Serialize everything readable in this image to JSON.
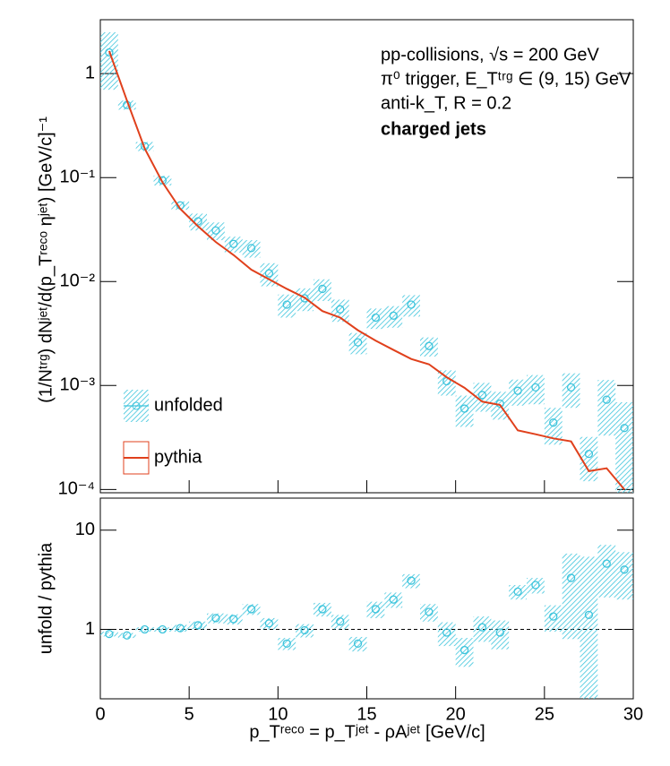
{
  "chart_data": [
    {
      "type": "log-hist",
      "ylabel": "(1/Nᵗʳᵍ) dNʲᵉᵗ/d(p_Tʳᵉᶜᵒ ηʲᵉᵗ) [GeV/c]⁻¹",
      "annotations": [
        "pp-collisions, √s = 200 GeV",
        "π⁰ trigger, E_Tᵗʳᵍ ∈ (9, 15) GeV",
        "anti-k_T, R = 0.2",
        "charged jets"
      ],
      "x": [
        0.5,
        1.5,
        2.5,
        3.5,
        4.5,
        5.5,
        6.5,
        7.5,
        8.5,
        9.5,
        10.5,
        11.5,
        12.5,
        13.5,
        14.5,
        15.5,
        16.5,
        17.5,
        18.5,
        19.5,
        20.5,
        21.5,
        22.5,
        23.5,
        24.5,
        25.5,
        26.5,
        27.5,
        28.5,
        29.5
      ],
      "xlim": [
        0,
        30
      ],
      "ylim": [
        9.3e-05,
        3.3
      ],
      "log_y": true,
      "yticks": [
        {
          "value": 0.0001,
          "label": "10⁻⁴"
        },
        {
          "value": 0.001,
          "label": "10⁻³"
        },
        {
          "value": 0.01,
          "label": "10⁻²"
        },
        {
          "value": 0.1,
          "label": "10⁻¹"
        },
        1
      ],
      "legend": "bottom-left",
      "series": [
        {
          "name": "unfolded",
          "color": "#3cc4dc",
          "style": "band",
          "values": [
            1.6,
            0.5,
            0.2,
            0.094,
            0.054,
            0.038,
            0.031,
            0.023,
            0.021,
            0.012,
            0.006,
            0.0069,
            0.0085,
            0.0054,
            0.0026,
            0.0045,
            0.0047,
            0.006,
            0.0024,
            0.0011,
            0.0006,
            0.00081,
            0.00067,
            0.00089,
            0.00096,
            0.00044,
            0.00096,
            0.00022,
            0.00073,
            0.00039
          ],
          "errors": [
            0.9,
            0.05,
            0.02,
            0.01,
            0.005,
            0.007,
            0.006,
            0.004,
            0.004,
            0.003,
            0.0015,
            0.0017,
            0.002,
            0.0013,
            0.0006,
            0.001,
            0.0011,
            0.0014,
            0.0005,
            0.0003,
            0.0002,
            0.00025,
            0.0002,
            0.00025,
            0.0003,
            0.00017,
            0.00035,
            0.0001,
            0.0004,
            0.0003
          ]
        },
        {
          "name": "pythia",
          "color": "#e0401c",
          "style": "line",
          "values": [
            1.65,
            0.55,
            0.19,
            0.09,
            0.05,
            0.034,
            0.024,
            0.018,
            0.013,
            0.0105,
            0.0085,
            0.007,
            0.0052,
            0.0045,
            0.0034,
            0.0027,
            0.0022,
            0.0018,
            0.0016,
            0.0012,
            0.00095,
            0.0007,
            0.00065,
            0.00037,
            0.00034,
            0.00031,
            0.00029,
            0.00015,
            0.00016,
            0.0001
          ]
        }
      ]
    },
    {
      "type": "log-hist",
      "ylabel": "unfold / pythia",
      "xlabel": "p_Tʳᵉᶜᵒ = p_Tʲᵉᵗ - ρAʲᵉᵗ [GeV/c]",
      "x": [
        0.5,
        1.5,
        2.5,
        3.5,
        4.5,
        5.5,
        6.5,
        7.5,
        8.5,
        9.5,
        10.5,
        11.5,
        12.5,
        13.5,
        14.5,
        15.5,
        16.5,
        17.5,
        18.5,
        19.5,
        20.5,
        21.5,
        22.5,
        23.5,
        24.5,
        25.5,
        26.5,
        27.5,
        28.5,
        29.5
      ],
      "xlim": [
        0,
        30
      ],
      "xticks": [
        0,
        5,
        10,
        15,
        20,
        25,
        30
      ],
      "ylim": [
        0.2,
        21
      ],
      "log_y": true,
      "yticks": [
        1,
        10
      ],
      "ref_line": 1,
      "series": [
        {
          "color": "#3cc4dc",
          "style": "band",
          "values": [
            0.9,
            0.87,
            1.0,
            1.0,
            1.03,
            1.1,
            1.3,
            1.27,
            1.6,
            1.15,
            0.72,
            0.98,
            1.6,
            1.2,
            0.72,
            1.6,
            2.0,
            3.1,
            1.5,
            0.93,
            0.62,
            1.05,
            0.93,
            2.4,
            2.8,
            1.35,
            3.3,
            1.4,
            4.6,
            4.0
          ],
          "errors": [
            0.05,
            0.05,
            0.05,
            0.05,
            0.08,
            0.1,
            0.15,
            0.15,
            0.2,
            0.15,
            0.1,
            0.15,
            0.25,
            0.2,
            0.12,
            0.3,
            0.35,
            0.5,
            0.3,
            0.25,
            0.2,
            0.3,
            0.3,
            0.4,
            0.5,
            0.4,
            2.5,
            4.0,
            2.5,
            2.0
          ]
        }
      ]
    }
  ]
}
